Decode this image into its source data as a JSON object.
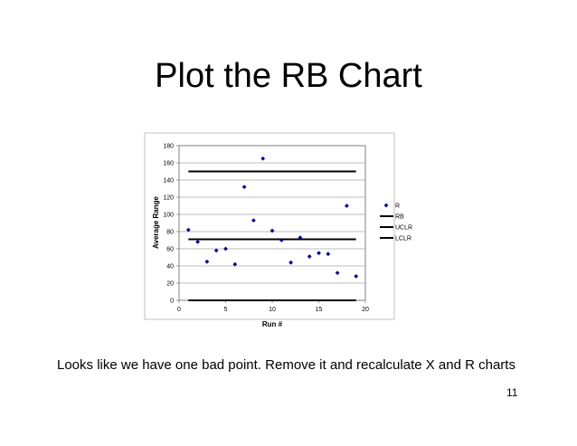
{
  "slide": {
    "title": "Plot the RB Chart",
    "caption": "Looks like we have one bad point.  Remove it and recalculate X and R charts",
    "page_number": "11"
  },
  "chart_data": {
    "type": "scatter",
    "title": "",
    "xlabel": "Run #",
    "ylabel": "Average Range",
    "xlim": [
      0,
      20
    ],
    "ylim": [
      0,
      180
    ],
    "xticks": [
      0,
      5,
      10,
      15,
      20
    ],
    "yticks": [
      0,
      20,
      40,
      60,
      80,
      100,
      120,
      140,
      160,
      180
    ],
    "grid": "horizontal",
    "legend_position": "right",
    "series": [
      {
        "name": "R",
        "kind": "points",
        "marker": "diamond",
        "color": "#00008b",
        "x": [
          1,
          2,
          3,
          4,
          5,
          6,
          7,
          8,
          9,
          10,
          11,
          12,
          13,
          14,
          15,
          16,
          17,
          18,
          19
        ],
        "y": [
          82,
          68,
          45,
          58,
          60,
          42,
          132,
          93,
          165,
          81,
          70,
          44,
          73,
          51,
          55,
          54,
          32,
          110,
          28
        ]
      },
      {
        "name": "RB",
        "kind": "line",
        "color": "#000000",
        "x": [
          1,
          19
        ],
        "y": [
          71,
          71
        ]
      },
      {
        "name": "UCLR",
        "kind": "line",
        "color": "#000000",
        "x": [
          1,
          19
        ],
        "y": [
          150,
          150
        ]
      },
      {
        "name": "LCLR",
        "kind": "line",
        "color": "#000000",
        "x": [
          1,
          19
        ],
        "y": [
          0,
          0
        ]
      }
    ]
  }
}
